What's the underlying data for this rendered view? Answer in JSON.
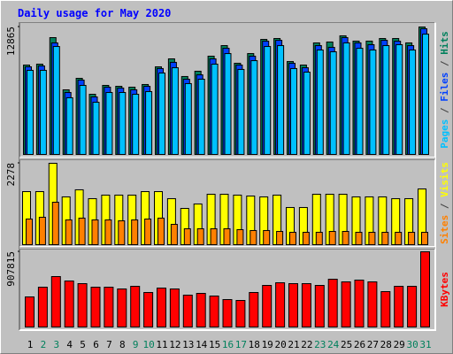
{
  "chart_data": [
    {
      "type": "bar",
      "title": "Daily usage for May 2020",
      "ylim": [
        0,
        12865
      ],
      "yticks": [
        12865
      ],
      "legend_separator": " / ",
      "series": [
        {
          "name": "Hits",
          "color": "#00805c",
          "values": [
            9050,
            9140,
            11800,
            6565,
            7720,
            6120,
            7010,
            6920,
            6830,
            7100,
            8870,
            9670,
            7900,
            8430,
            9940,
            11000,
            9230,
            10200,
            11620,
            11710,
            9400,
            9050,
            11270,
            11360,
            11980,
            11450,
            11450,
            11710,
            11710,
            11270,
            12865
          ]
        },
        {
          "name": "Files",
          "color": "#0040ff",
          "values": [
            8870,
            8960,
            11270,
            6300,
            7540,
            5855,
            6830,
            6740,
            6570,
            6920,
            8700,
            9320,
            7630,
            8070,
            9670,
            10730,
            9050,
            9940,
            11440,
            11530,
            9230,
            8780,
            11000,
            10820,
            11800,
            11270,
            11090,
            11530,
            11440,
            11000,
            12690
          ]
        },
        {
          "name": "Pages",
          "color": "#00c0ff",
          "values": [
            8520,
            8520,
            10910,
            5770,
            7010,
            5320,
            6300,
            6300,
            6120,
            6390,
            8250,
            8780,
            7190,
            7630,
            9140,
            10200,
            8610,
            9490,
            10910,
            11000,
            8700,
            8340,
            10560,
            10380,
            11270,
            10730,
            10560,
            11000,
            11090,
            10560,
            12150
          ]
        }
      ]
    },
    {
      "type": "bar",
      "ylim": [
        0,
        2278
      ],
      "yticks": [
        2278
      ],
      "legend_separator": " / ",
      "series": [
        {
          "name": "Visits",
          "color": "#ffff00",
          "values": [
            1494,
            1494,
            2278,
            1348,
            1544,
            1299,
            1397,
            1397,
            1397,
            1494,
            1494,
            1299,
            1029,
            1152,
            1421,
            1421,
            1397,
            1372,
            1348,
            1397,
            1054,
            1054,
            1421,
            1421,
            1421,
            1348,
            1348,
            1348,
            1299,
            1299,
            1568
          ]
        },
        {
          "name": "Sites",
          "color": "#ff8000",
          "values": [
            735,
            784,
            1200,
            711,
            760,
            711,
            711,
            686,
            711,
            735,
            760,
            588,
            466,
            466,
            466,
            466,
            441,
            417,
            417,
            392,
            368,
            368,
            368,
            392,
            392,
            368,
            368,
            368,
            368,
            368,
            368
          ]
        }
      ]
    },
    {
      "type": "bar",
      "ylim": [
        0,
        907815
      ],
      "yticks": [
        907815
      ],
      "categories": [
        "1",
        "2",
        "3",
        "4",
        "5",
        "6",
        "7",
        "8",
        "9",
        "10",
        "11",
        "12",
        "13",
        "14",
        "15",
        "16",
        "17",
        "18",
        "19",
        "20",
        "21",
        "22",
        "23",
        "24",
        "25",
        "26",
        "27",
        "28",
        "29",
        "30",
        "31"
      ],
      "category_colors": [
        "#000000",
        "#00805c",
        "#00805c",
        "#000000",
        "#000000",
        "#000000",
        "#000000",
        "#000000",
        "#00805c",
        "#00805c",
        "#000000",
        "#000000",
        "#000000",
        "#000000",
        "#000000",
        "#00805c",
        "#00805c",
        "#000000",
        "#000000",
        "#000000",
        "#000000",
        "#000000",
        "#00805c",
        "#00805c",
        "#000000",
        "#000000",
        "#000000",
        "#000000",
        "#000000",
        "#00805c",
        "#00805c"
      ],
      "series": [
        {
          "name": "KBytes",
          "color": "#ff0000",
          "values": [
            369460,
            485576,
            612248,
            559468,
            527800,
            485576,
            485576,
            464464,
            496132,
            422240,
            475020,
            464464,
            390572,
            411684,
            380016,
            337792,
            327236,
            422240,
            506688,
            538356,
            527800,
            527800,
            506688,
            580580,
            548912,
            570024,
            548912,
            432796,
            496132,
            496132,
            907815
          ]
        }
      ]
    }
  ]
}
